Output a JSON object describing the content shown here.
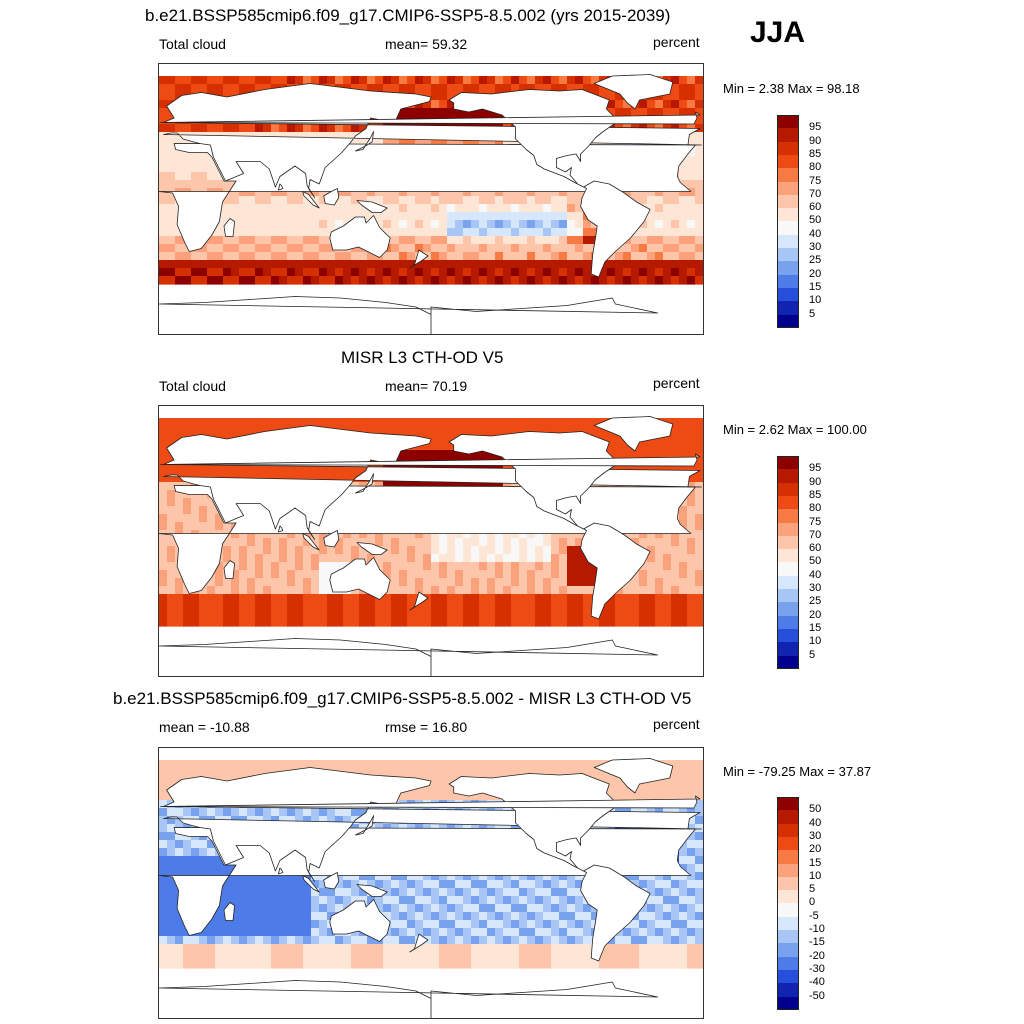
{
  "season": "JJA",
  "panels": [
    {
      "title": "b.e21.BSSP585cmip6.f09_g17.CMIP6-SSP5-8.5.002 (yrs 2015-2039)",
      "left_label": "Total cloud",
      "center_label": "mean=  59.32",
      "right_label": "percent",
      "minmax": "Min =   2.38 Max =  98.18",
      "colorbar_labels": [
        "95",
        "90",
        "85",
        "80",
        "75",
        "70",
        "60",
        "50",
        "40",
        "30",
        "25",
        "20",
        "15",
        "10",
        "5"
      ],
      "colorbar_colors": [
        "#8c0000",
        "#b51a00",
        "#d63000",
        "#ee4a14",
        "#f77a45",
        "#fba27c",
        "#fdc6aa",
        "#fde6d6",
        "#f8f8f8",
        "#d6e6fb",
        "#a8c6f5",
        "#78a1ee",
        "#4d7be8",
        "#2650dc",
        "#1024b0",
        "#00008c"
      ]
    },
    {
      "title": "MISR L3 CTH-OD V5",
      "left_label": "Total cloud",
      "center_label": "mean=  70.19",
      "right_label": "percent",
      "minmax": "Min =   2.62 Max = 100.00",
      "colorbar_labels": [
        "95",
        "90",
        "85",
        "80",
        "75",
        "70",
        "60",
        "50",
        "40",
        "30",
        "25",
        "20",
        "15",
        "10",
        "5"
      ],
      "colorbar_colors": [
        "#8c0000",
        "#b51a00",
        "#d63000",
        "#ee4a14",
        "#f77a45",
        "#fba27c",
        "#fdc6aa",
        "#fde6d6",
        "#f8f8f8",
        "#d6e6fb",
        "#a8c6f5",
        "#78a1ee",
        "#4d7be8",
        "#2650dc",
        "#1024b0",
        "#00008c"
      ]
    },
    {
      "title": "b.e21.BSSP585cmip6.f09_g17.CMIP6-SSP5-8.5.002 - MISR L3 CTH-OD V5",
      "left_label": "mean = -10.88",
      "center_label": "rmse =  16.80",
      "right_label": "percent",
      "minmax": "Min = -79.25 Max =  37.87",
      "colorbar_labels": [
        "50",
        "40",
        "30",
        "20",
        "15",
        "10",
        "5",
        "0",
        "-5",
        "-10",
        "-15",
        "-20",
        "-30",
        "-40",
        "-50"
      ],
      "colorbar_colors": [
        "#8c0000",
        "#b51a00",
        "#d63000",
        "#ee4a14",
        "#f77a45",
        "#fba27c",
        "#fdc6aa",
        "#fde6d6",
        "#f8f8f8",
        "#d6e6fb",
        "#a8c6f5",
        "#78a1ee",
        "#4d7be8",
        "#2650dc",
        "#1024b0",
        "#00008c"
      ]
    }
  ],
  "chart_data": [
    {
      "type": "heatmap",
      "title": "b.e21.BSSP585cmip6.f09_g17.CMIP6-SSP5-8.5.002 (yrs 2015-2039)",
      "variable": "Total cloud",
      "units": "percent",
      "mean": 59.32,
      "min": 2.38,
      "max": 98.18,
      "levels": [
        5,
        10,
        15,
        20,
        25,
        30,
        40,
        50,
        60,
        70,
        75,
        80,
        85,
        90,
        95
      ]
    },
    {
      "type": "heatmap",
      "title": "MISR L3 CTH-OD V5",
      "variable": "Total cloud",
      "units": "percent",
      "mean": 70.19,
      "min": 2.62,
      "max": 100.0,
      "levels": [
        5,
        10,
        15,
        20,
        25,
        30,
        40,
        50,
        60,
        70,
        75,
        80,
        85,
        90,
        95
      ]
    },
    {
      "type": "heatmap",
      "title": "b.e21.BSSP585cmip6.f09_g17.CMIP6-SSP5-8.5.002 - MISR L3 CTH-OD V5",
      "units": "percent",
      "mean": -10.88,
      "rmse": 16.8,
      "min": -79.25,
      "max": 37.87,
      "levels": [
        -50,
        -40,
        -30,
        -20,
        -15,
        -10,
        -5,
        0,
        5,
        10,
        15,
        20,
        30,
        40,
        50
      ]
    }
  ]
}
